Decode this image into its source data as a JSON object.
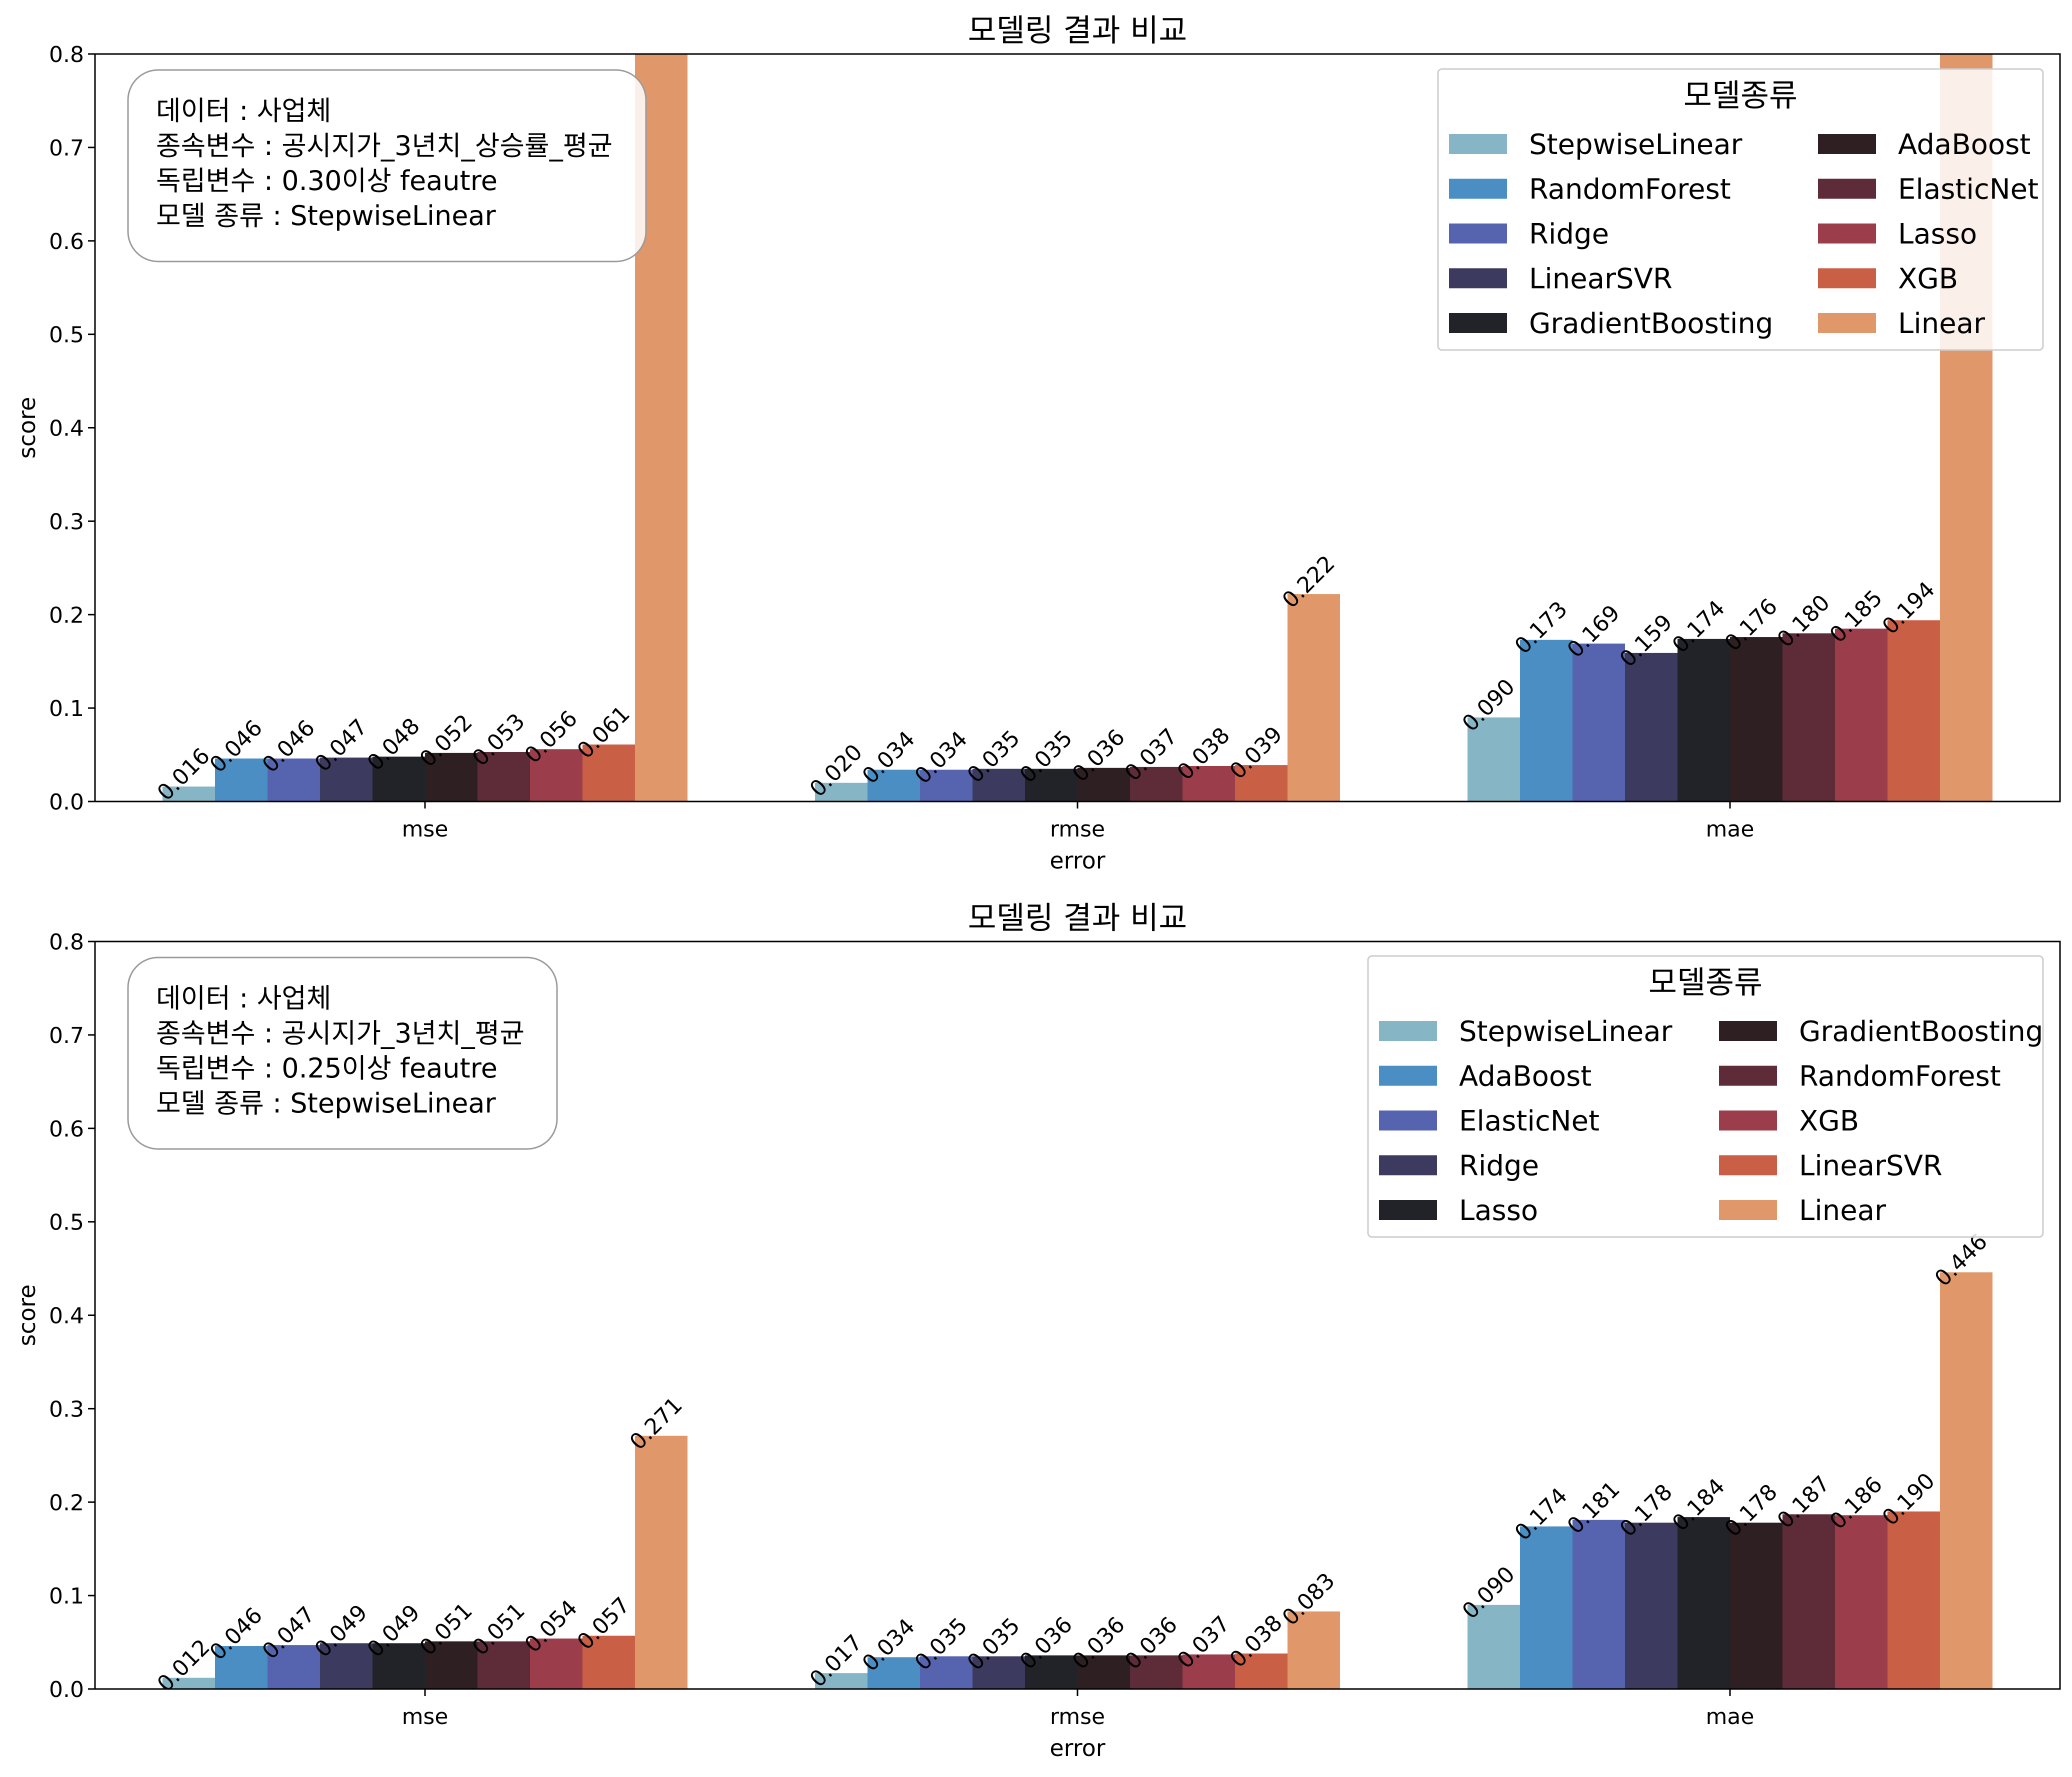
{
  "chart_data": [
    {
      "type": "bar",
      "title": "모델링 결과 비교",
      "xlabel": "error",
      "ylabel": "score",
      "ylim": [
        0,
        0.8
      ],
      "yticks": [
        "0.0",
        "0.1",
        "0.2",
        "0.3",
        "0.4",
        "0.5",
        "0.6",
        "0.7",
        "0.8"
      ],
      "categories": [
        "mse",
        "rmse",
        "mae"
      ],
      "info_lines": [
        "데이터 : 사업체",
        "종속변수 : 공시지가_3년치_상승률_평균",
        "독립변수 : 0.30이상 feautre",
        "모델 종류 : StepwiseLinear"
      ],
      "legend_title": "모델종류",
      "legend_position": "top-right",
      "series": [
        {
          "name": "StepwiseLinear",
          "color": "#86b6c5",
          "values": [
            0.016,
            0.02,
            0.09
          ],
          "labels": [
            "0.016",
            "0.020",
            "0.090"
          ]
        },
        {
          "name": "RandomForest",
          "color": "#4a8ec4",
          "values": [
            0.046,
            0.034,
            0.173
          ],
          "labels": [
            "0.046",
            "0.034",
            "0.173"
          ]
        },
        {
          "name": "Ridge",
          "color": "#5664b0",
          "values": [
            0.046,
            0.034,
            0.169
          ],
          "labels": [
            "0.046",
            "0.034",
            "0.169"
          ]
        },
        {
          "name": "LinearSVR",
          "color": "#3c3a5e",
          "values": [
            0.047,
            0.035,
            0.159
          ],
          "labels": [
            "0.047",
            "0.035",
            "0.159"
          ]
        },
        {
          "name": "GradientBoosting",
          "color": "#222329",
          "values": [
            0.048,
            0.035,
            0.174
          ],
          "labels": [
            "0.048",
            "0.035",
            "0.174"
          ]
        },
        {
          "name": "AdaBoost",
          "color": "#2e1f22",
          "values": [
            0.052,
            0.036,
            0.176
          ],
          "labels": [
            "0.052",
            "0.036",
            "0.176"
          ]
        },
        {
          "name": "ElasticNet",
          "color": "#5e2b38",
          "values": [
            0.053,
            0.037,
            0.18
          ],
          "labels": [
            "0.053",
            "0.037",
            "0.180"
          ]
        },
        {
          "name": "Lasso",
          "color": "#9c3d4c",
          "values": [
            0.056,
            0.038,
            0.185
          ],
          "labels": [
            "0.056",
            "0.038",
            "0.185"
          ]
        },
        {
          "name": "XGB",
          "color": "#c95f44",
          "values": [
            0.061,
            0.039,
            0.194
          ],
          "labels": [
            "0.061",
            "0.039",
            "0.194"
          ]
        },
        {
          "name": "Linear",
          "color": "#e0986a",
          "values": [
            0.85,
            0.222,
            0.85
          ],
          "labels": [
            "",
            "0.222",
            ""
          ]
        }
      ]
    },
    {
      "type": "bar",
      "title": "모델링 결과 비교",
      "xlabel": "error",
      "ylabel": "score",
      "ylim": [
        0,
        0.8
      ],
      "yticks": [
        "0.0",
        "0.1",
        "0.2",
        "0.3",
        "0.4",
        "0.5",
        "0.6",
        "0.7",
        "0.8"
      ],
      "categories": [
        "mse",
        "rmse",
        "mae"
      ],
      "info_lines": [
        "데이터 : 사업체",
        "종속변수 : 공시지가_3년치_평균",
        "독립변수 : 0.25이상 feautre",
        "모델 종류 : StepwiseLinear"
      ],
      "legend_title": "모델종류",
      "legend_position": "top-right",
      "series": [
        {
          "name": "StepwiseLinear",
          "color": "#86b6c5",
          "values": [
            0.012,
            0.017,
            0.09
          ],
          "labels": [
            "0.012",
            "0.017",
            "0.090"
          ]
        },
        {
          "name": "AdaBoost",
          "color": "#4a8ec4",
          "values": [
            0.046,
            0.034,
            0.174
          ],
          "labels": [
            "0.046",
            "0.034",
            "0.174"
          ]
        },
        {
          "name": "ElasticNet",
          "color": "#5664b0",
          "values": [
            0.047,
            0.035,
            0.181
          ],
          "labels": [
            "0.047",
            "0.035",
            "0.181"
          ]
        },
        {
          "name": "Ridge",
          "color": "#3c3a5e",
          "values": [
            0.049,
            0.035,
            0.178
          ],
          "labels": [
            "0.049",
            "0.035",
            "0.178"
          ]
        },
        {
          "name": "Lasso",
          "color": "#222329",
          "values": [
            0.049,
            0.036,
            0.184
          ],
          "labels": [
            "0.049",
            "0.036",
            "0.184"
          ]
        },
        {
          "name": "GradientBoosting",
          "color": "#2e1f22",
          "values": [
            0.051,
            0.036,
            0.178
          ],
          "labels": [
            "0.051",
            "0.036",
            "0.178"
          ]
        },
        {
          "name": "RandomForest",
          "color": "#5e2b38",
          "values": [
            0.051,
            0.036,
            0.187
          ],
          "labels": [
            "0.051",
            "0.036",
            "0.187"
          ]
        },
        {
          "name": "XGB",
          "color": "#9c3d4c",
          "values": [
            0.054,
            0.037,
            0.186
          ],
          "labels": [
            "0.054",
            "0.037",
            "0.186"
          ]
        },
        {
          "name": "LinearSVR",
          "color": "#c95f44",
          "values": [
            0.057,
            0.038,
            0.19
          ],
          "labels": [
            "0.057",
            "0.038",
            "0.190"
          ]
        },
        {
          "name": "Linear",
          "color": "#e0986a",
          "values": [
            0.271,
            0.083,
            0.446
          ],
          "labels": [
            "0.271",
            "0.083",
            "0.446"
          ]
        }
      ]
    }
  ]
}
